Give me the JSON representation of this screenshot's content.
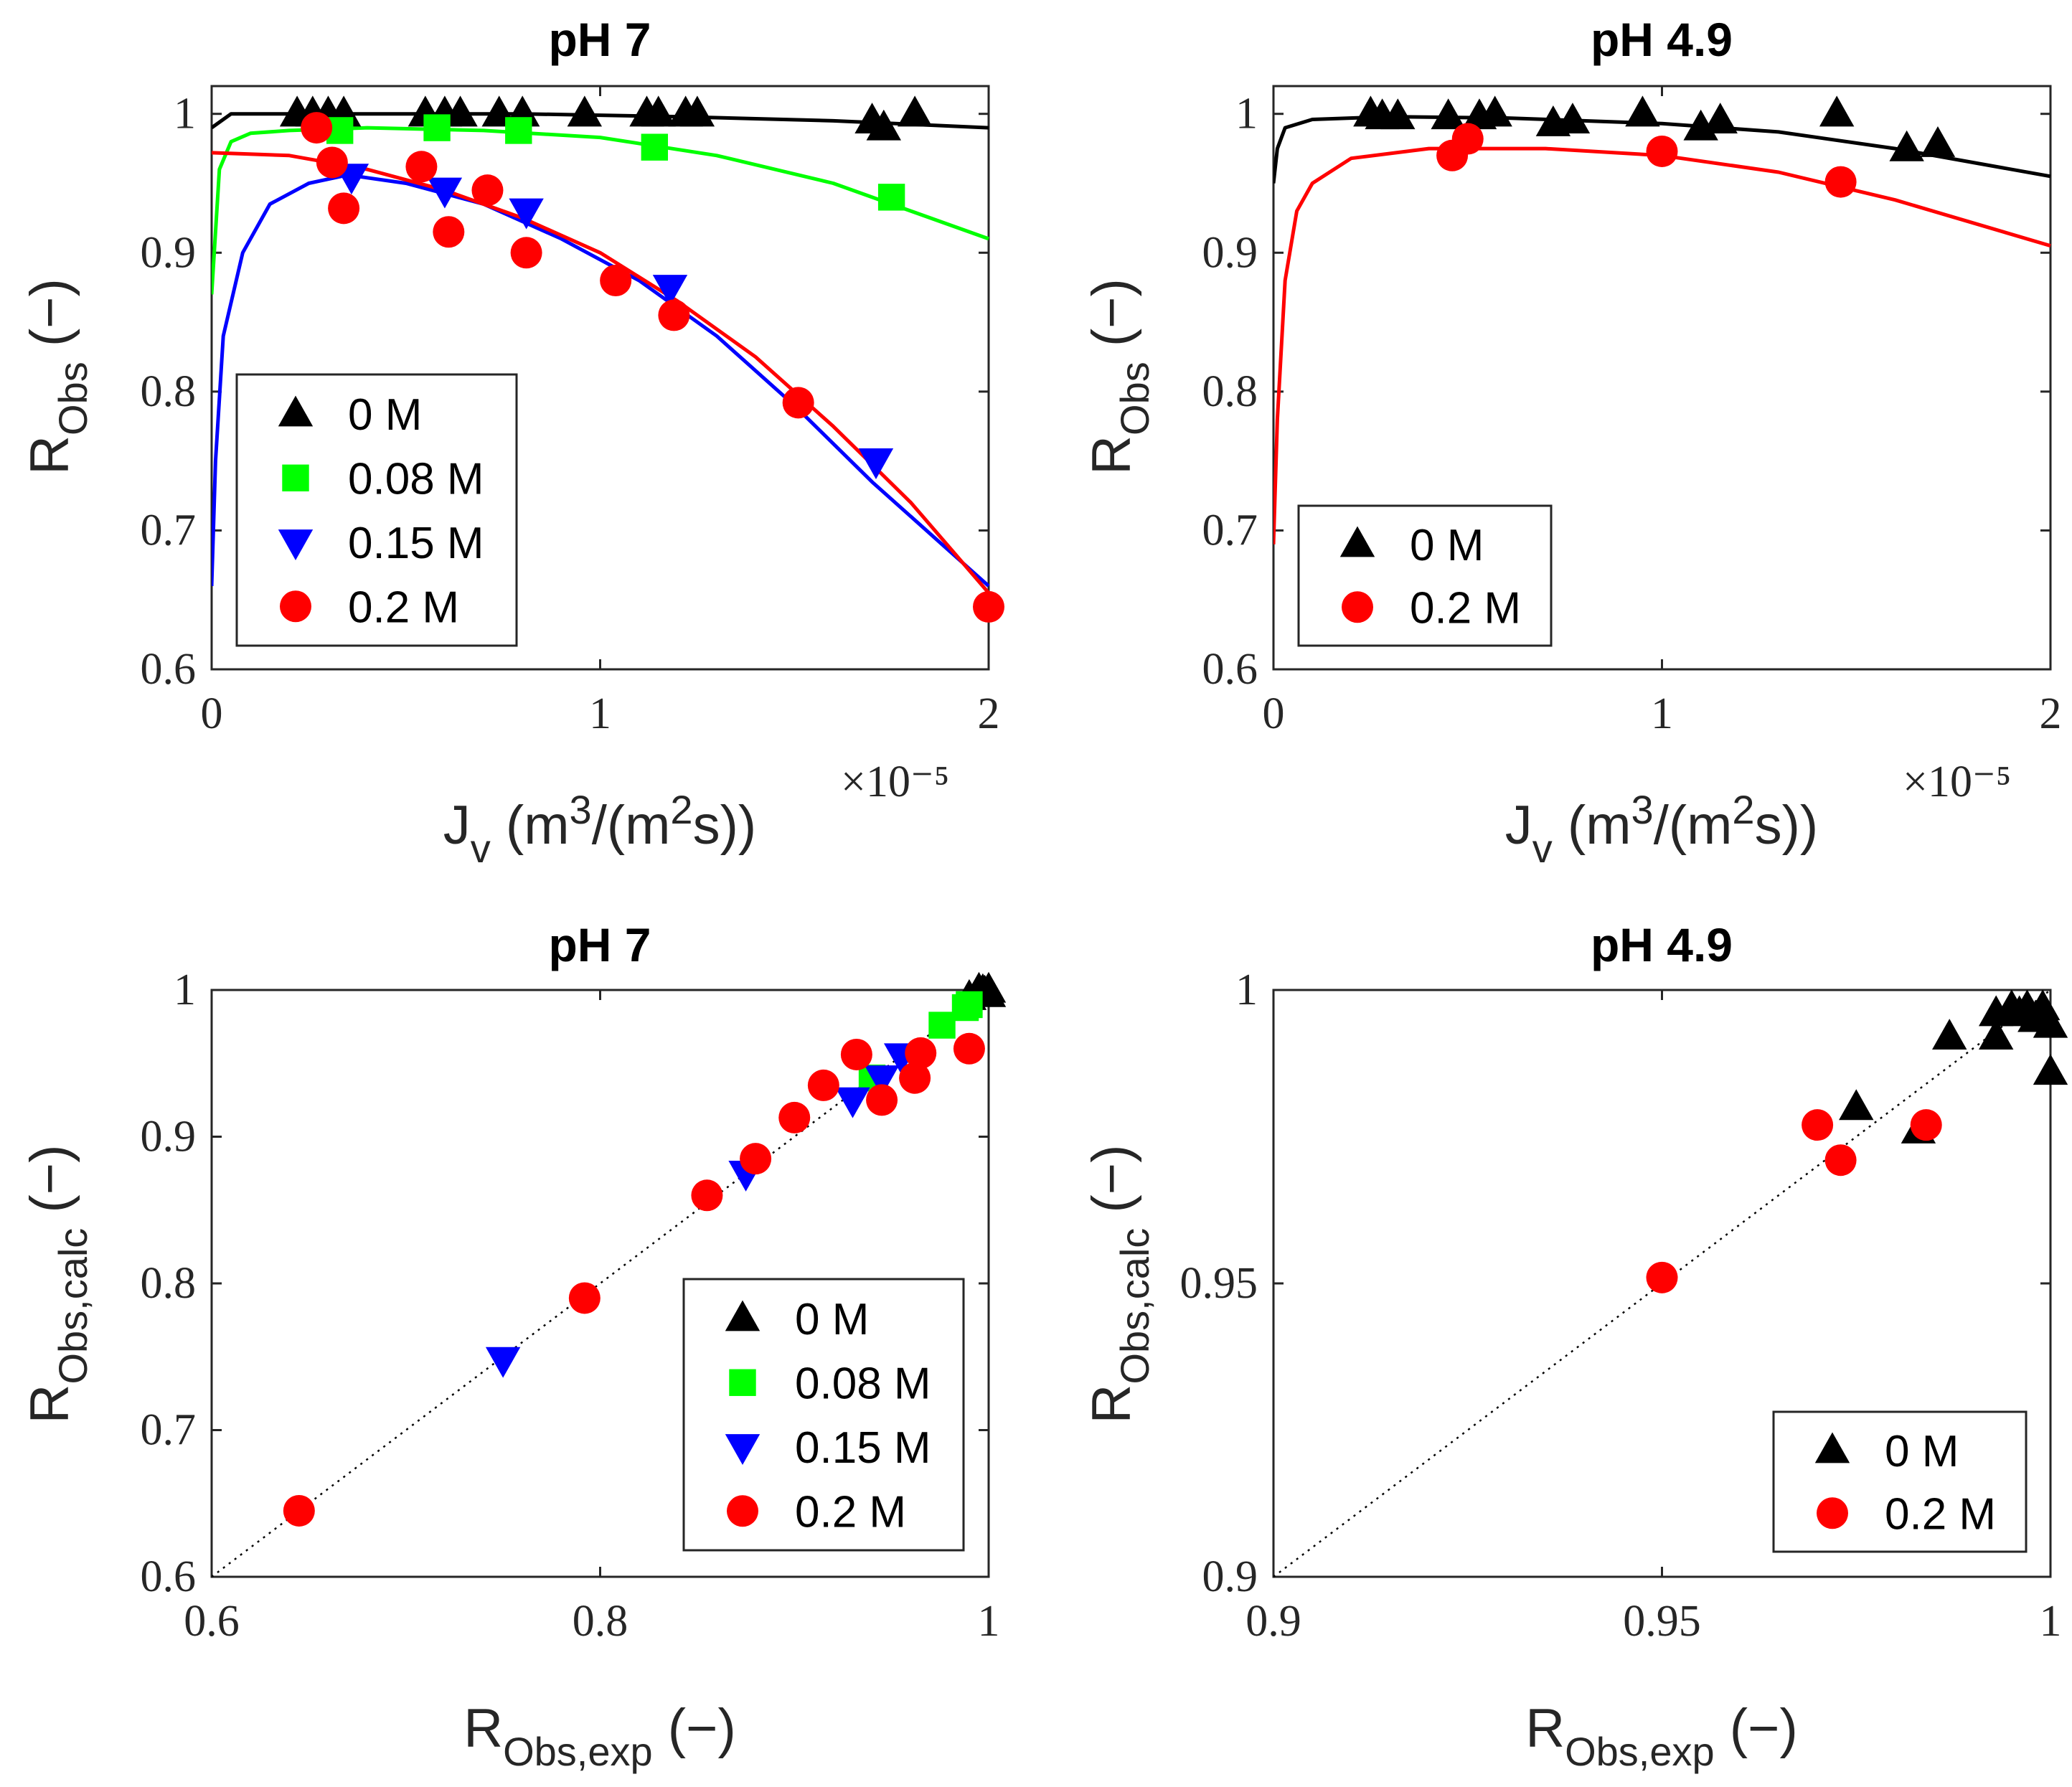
{
  "colors": {
    "0 M": "#000000",
    "0.08 M": "#00ff00",
    "0.15 M": "#0000ff",
    "0.2 M": "#ff0000"
  },
  "markers": {
    "0 M": "triangle-up",
    "0.08 M": "square",
    "0.15 M": "triangle-down",
    "0.2 M": "circle"
  },
  "chart_data": [
    {
      "type": "scatter",
      "title": "pH 7",
      "xlabel": "J_v (m^3/(m^2s))",
      "ylabel": "R_Obs (−)",
      "x_multiplier": "×10⁻⁵",
      "xlim": [
        0,
        2
      ],
      "ylim": [
        0.6,
        1.02
      ],
      "xticks": [
        "0",
        "1",
        "2"
      ],
      "yticks": [
        "0.6",
        "0.7",
        "0.8",
        "0.9",
        "1"
      ],
      "legend": {
        "placement": "lower-left",
        "entries": [
          "0 M",
          "0.08 M",
          "0.15 M",
          "0.2 M"
        ]
      },
      "series": [
        {
          "name": "0 M",
          "points": [
            [
              0.22,
              1.0
            ],
            [
              0.26,
              1.0
            ],
            [
              0.3,
              1.0
            ],
            [
              0.34,
              1.0
            ],
            [
              0.55,
              1.0
            ],
            [
              0.6,
              1.0
            ],
            [
              0.64,
              1.0
            ],
            [
              0.74,
              1.0
            ],
            [
              0.8,
              1.0
            ],
            [
              0.96,
              1.0
            ],
            [
              1.12,
              1.0
            ],
            [
              1.15,
              1.0
            ],
            [
              1.22,
              1.0
            ],
            [
              1.25,
              1.0
            ],
            [
              1.7,
              0.995
            ],
            [
              1.73,
              0.99
            ],
            [
              1.81,
              1.0
            ]
          ],
          "fit": [
            [
              0.0,
              0.99
            ],
            [
              0.05,
              1.0
            ],
            [
              0.2,
              1.0
            ],
            [
              0.5,
              1.0
            ],
            [
              0.8,
              1.0
            ],
            [
              1.2,
              0.998
            ],
            [
              1.6,
              0.995
            ],
            [
              2.0,
              0.99
            ]
          ]
        },
        {
          "name": "0.08 M",
          "points": [
            [
              0.33,
              0.988
            ],
            [
              0.58,
              0.99
            ],
            [
              0.79,
              0.988
            ],
            [
              1.14,
              0.976
            ],
            [
              1.75,
              0.94
            ]
          ],
          "fit": [
            [
              0.0,
              0.87
            ],
            [
              0.02,
              0.96
            ],
            [
              0.05,
              0.98
            ],
            [
              0.1,
              0.986
            ],
            [
              0.2,
              0.988
            ],
            [
              0.4,
              0.99
            ],
            [
              0.7,
              0.988
            ],
            [
              1.0,
              0.983
            ],
            [
              1.3,
              0.97
            ],
            [
              1.6,
              0.95
            ],
            [
              2.0,
              0.91
            ]
          ]
        },
        {
          "name": "0.15 M",
          "points": [
            [
              0.36,
              0.955
            ],
            [
              0.6,
              0.945
            ],
            [
              0.81,
              0.93
            ],
            [
              1.18,
              0.875
            ],
            [
              1.71,
              0.75
            ]
          ],
          "fit": [
            [
              0.0,
              0.66
            ],
            [
              0.01,
              0.75
            ],
            [
              0.03,
              0.84
            ],
            [
              0.08,
              0.9
            ],
            [
              0.15,
              0.935
            ],
            [
              0.25,
              0.95
            ],
            [
              0.35,
              0.956
            ],
            [
              0.5,
              0.95
            ],
            [
              0.7,
              0.935
            ],
            [
              0.9,
              0.91
            ],
            [
              1.1,
              0.88
            ],
            [
              1.3,
              0.84
            ],
            [
              1.5,
              0.79
            ],
            [
              1.7,
              0.735
            ],
            [
              2.0,
              0.66
            ]
          ]
        },
        {
          "name": "0.2 M",
          "points": [
            [
              0.27,
              0.99
            ],
            [
              0.31,
              0.965
            ],
            [
              0.34,
              0.932
            ],
            [
              0.54,
              0.962
            ],
            [
              0.61,
              0.915
            ],
            [
              0.71,
              0.945
            ],
            [
              0.81,
              0.9
            ],
            [
              1.04,
              0.88
            ],
            [
              1.19,
              0.855
            ],
            [
              1.51,
              0.792
            ],
            [
              2.0,
              0.645
            ]
          ],
          "fit": [
            [
              0.0,
              0.972
            ],
            [
              0.2,
              0.97
            ],
            [
              0.4,
              0.96
            ],
            [
              0.6,
              0.945
            ],
            [
              0.8,
              0.925
            ],
            [
              1.0,
              0.9
            ],
            [
              1.2,
              0.865
            ],
            [
              1.4,
              0.825
            ],
            [
              1.6,
              0.775
            ],
            [
              1.8,
              0.72
            ],
            [
              2.0,
              0.655
            ]
          ]
        }
      ]
    },
    {
      "type": "scatter",
      "title": "pH 4.9",
      "xlabel": "J_v (m^3/(m^2s))",
      "ylabel": "R_Obs (−)",
      "x_multiplier": "×10⁻⁵",
      "xlim": [
        0,
        2
      ],
      "ylim": [
        0.6,
        1.02
      ],
      "xticks": [
        "0",
        "1",
        "2"
      ],
      "yticks": [
        "0.6",
        "0.7",
        "0.8",
        "0.9",
        "1"
      ],
      "legend": {
        "placement": "lower-left",
        "entries": [
          "0 M",
          "0.2 M"
        ]
      },
      "series": [
        {
          "name": "0 M",
          "points": [
            [
              0.25,
              1.0
            ],
            [
              0.28,
              0.998
            ],
            [
              0.32,
              0.998
            ],
            [
              0.45,
              0.998
            ],
            [
              0.53,
              0.998
            ],
            [
              0.57,
              1.0
            ],
            [
              0.72,
              0.993
            ],
            [
              0.77,
              0.995
            ],
            [
              0.95,
              1.0
            ],
            [
              1.1,
              0.99
            ],
            [
              1.15,
              0.995
            ],
            [
              1.45,
              1.0
            ],
            [
              1.63,
              0.975
            ],
            [
              1.71,
              0.978
            ]
          ],
          "fit": [
            [
              0.0,
              0.95
            ],
            [
              0.01,
              0.975
            ],
            [
              0.03,
              0.99
            ],
            [
              0.1,
              0.996
            ],
            [
              0.3,
              0.998
            ],
            [
              0.6,
              0.997
            ],
            [
              1.0,
              0.993
            ],
            [
              1.3,
              0.987
            ],
            [
              1.6,
              0.975
            ],
            [
              2.0,
              0.955
            ]
          ]
        },
        {
          "name": "0.2 M",
          "points": [
            [
              0.46,
              0.97
            ],
            [
              0.5,
              0.982
            ],
            [
              1.0,
              0.973
            ],
            [
              1.46,
              0.951
            ]
          ],
          "fit": [
            [
              0.0,
              0.69
            ],
            [
              0.01,
              0.78
            ],
            [
              0.03,
              0.88
            ],
            [
              0.06,
              0.93
            ],
            [
              0.1,
              0.95
            ],
            [
              0.2,
              0.968
            ],
            [
              0.4,
              0.975
            ],
            [
              0.7,
              0.975
            ],
            [
              1.0,
              0.97
            ],
            [
              1.3,
              0.958
            ],
            [
              1.6,
              0.938
            ],
            [
              2.0,
              0.905
            ]
          ]
        }
      ]
    },
    {
      "type": "scatter",
      "title": "pH 7",
      "xlabel": "R_Obs,exp (−)",
      "ylabel": "R_Obs,calc (−)",
      "xlim": [
        0.6,
        1
      ],
      "ylim": [
        0.6,
        1
      ],
      "xticks": [
        "0.6",
        "0.8",
        "1"
      ],
      "yticks": [
        "0.6",
        "0.7",
        "0.8",
        "0.9",
        "1"
      ],
      "identity_line": true,
      "legend": {
        "placement": "lower-right",
        "entries": [
          "0 M",
          "0.08 M",
          "0.15 M",
          "0.2 M"
        ]
      },
      "series": [
        {
          "name": "0 M",
          "points": [
            [
              0.99,
              0.995
            ],
            [
              0.995,
              1.0
            ],
            [
              1.0,
              1.0
            ],
            [
              0.998,
              0.998
            ],
            [
              0.997,
              0.999
            ],
            [
              1.0,
              0.997
            ]
          ]
        },
        {
          "name": "0.08 M",
          "points": [
            [
              0.976,
              0.976
            ],
            [
              0.988,
              0.988
            ],
            [
              0.99,
              0.99
            ],
            [
              0.94,
              0.94
            ]
          ]
        },
        {
          "name": "0.15 M",
          "points": [
            [
              0.75,
              0.748
            ],
            [
              0.875,
              0.875
            ],
            [
              0.93,
              0.925
            ],
            [
              0.945,
              0.94
            ],
            [
              0.955,
              0.955
            ]
          ]
        },
        {
          "name": "0.2 M",
          "points": [
            [
              0.645,
              0.645
            ],
            [
              0.792,
              0.79
            ],
            [
              0.855,
              0.86
            ],
            [
              0.88,
              0.885
            ],
            [
              0.9,
              0.913
            ],
            [
              0.915,
              0.935
            ],
            [
              0.932,
              0.956
            ],
            [
              0.945,
              0.925
            ],
            [
              0.962,
              0.94
            ],
            [
              0.965,
              0.957
            ],
            [
              0.99,
              0.96
            ]
          ]
        }
      ]
    },
    {
      "type": "scatter",
      "title": "pH 4.9",
      "xlabel": "R_Obs,exp (−)",
      "ylabel": "R_Obs,calc (−)",
      "xlim": [
        0.9,
        1
      ],
      "ylim": [
        0.9,
        1
      ],
      "xticks": [
        "0.9",
        "0.95",
        "1"
      ],
      "yticks": [
        "0.9",
        "0.95",
        "1"
      ],
      "identity_line": true,
      "legend": {
        "placement": "lower-right",
        "entries": [
          "0 M",
          "0.2 M"
        ]
      },
      "series": [
        {
          "name": "0 M",
          "points": [
            [
              0.975,
              0.98
            ],
            [
              0.983,
              0.976
            ],
            [
              0.987,
              0.992
            ],
            [
              0.993,
              0.992
            ],
            [
              0.993,
              0.996
            ],
            [
              0.995,
              0.997
            ],
            [
              0.996,
              0.996
            ],
            [
              0.997,
              0.997
            ],
            [
              0.998,
              0.995
            ],
            [
              0.999,
              0.997
            ],
            [
              1.0,
              0.994
            ],
            [
              1.0,
              0.986
            ]
          ]
        },
        {
          "name": "0.2 M",
          "points": [
            [
              0.97,
              0.977
            ],
            [
              0.973,
              0.971
            ],
            [
              0.984,
              0.977
            ],
            [
              0.95,
              0.951
            ]
          ]
        }
      ]
    }
  ]
}
